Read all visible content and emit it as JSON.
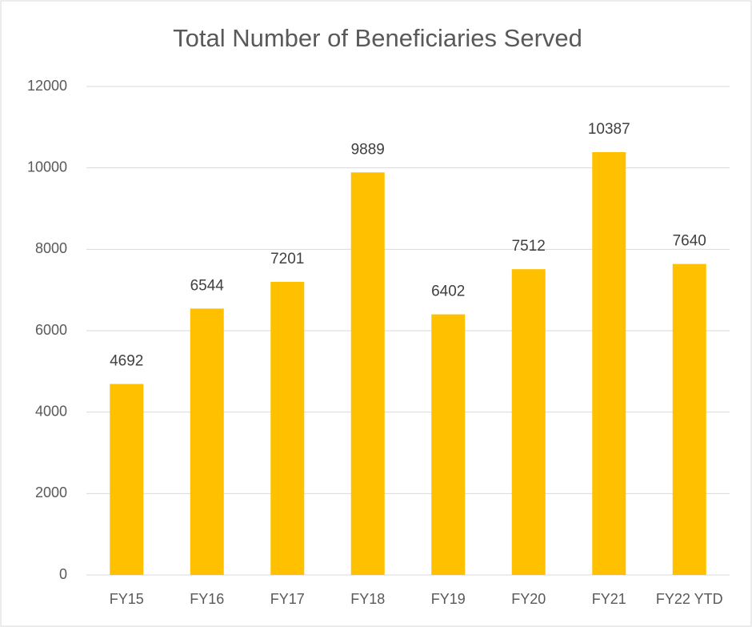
{
  "chart_data": {
    "type": "bar",
    "title": "Total Number of Beneficiaries Served",
    "categories": [
      "FY15",
      "FY16",
      "FY17",
      "FY18",
      "FY19",
      "FY20",
      "FY21",
      "FY22 YTD"
    ],
    "values": [
      4692,
      6544,
      7201,
      9889,
      6402,
      7512,
      10387,
      7640
    ],
    "color": "#ffc000",
    "ylim": [
      0,
      12000
    ],
    "yticks": [
      0,
      2000,
      4000,
      6000,
      8000,
      10000,
      12000
    ],
    "grid": true
  }
}
